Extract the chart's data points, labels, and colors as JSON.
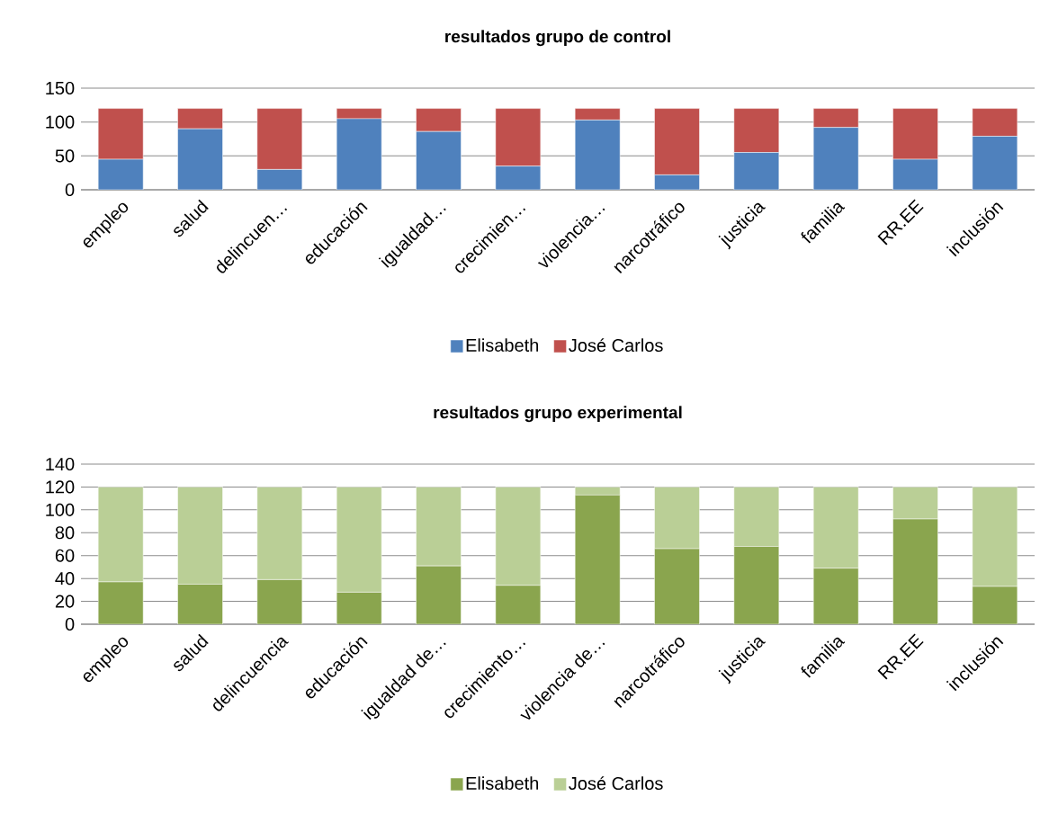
{
  "chart_data": [
    {
      "type": "bar",
      "stacked": true,
      "title": "resultados grupo de control",
      "categories": [
        "empleo",
        "salud",
        "delincuen…",
        "educación",
        "igualdad…",
        "crecimien…",
        "violencia…",
        "narcotráfico",
        "justicia",
        "familia",
        "RR.EE",
        "inclusión"
      ],
      "series": [
        {
          "name": "Elisabeth",
          "color": "#4f81bd",
          "values": [
            45,
            90,
            30,
            105,
            86,
            35,
            103,
            22,
            55,
            92,
            45,
            79
          ]
        },
        {
          "name": "José Carlos",
          "color": "#c0504d",
          "values": [
            75,
            30,
            90,
            15,
            34,
            85,
            17,
            98,
            65,
            28,
            75,
            41
          ]
        }
      ],
      "ylim": [
        0,
        150
      ],
      "yticks": [
        0,
        50,
        100,
        150
      ],
      "grid": "y",
      "legend": "bottom"
    },
    {
      "type": "bar",
      "stacked": true,
      "title": "resultados grupo experimental",
      "categories": [
        "empleo",
        "salud",
        "delincuencia",
        "educación",
        "igualdad de…",
        "crecimiento…",
        "violencia de…",
        "narcotráfico",
        "justicia",
        "familia",
        "RR.EE",
        "inclusión"
      ],
      "series": [
        {
          "name": "Elisabeth",
          "color": "#8aa54e",
          "values": [
            37,
            35,
            39,
            28,
            51,
            34,
            113,
            66,
            68,
            49,
            92,
            33
          ]
        },
        {
          "name": "José Carlos",
          "color": "#bacf96",
          "values": [
            83,
            85,
            81,
            92,
            69,
            86,
            7,
            54,
            52,
            71,
            28,
            87
          ]
        }
      ],
      "ylim": [
        0,
        140
      ],
      "yticks": [
        0,
        20,
        40,
        60,
        80,
        100,
        120,
        140
      ],
      "grid": "y",
      "legend": "bottom"
    }
  ]
}
